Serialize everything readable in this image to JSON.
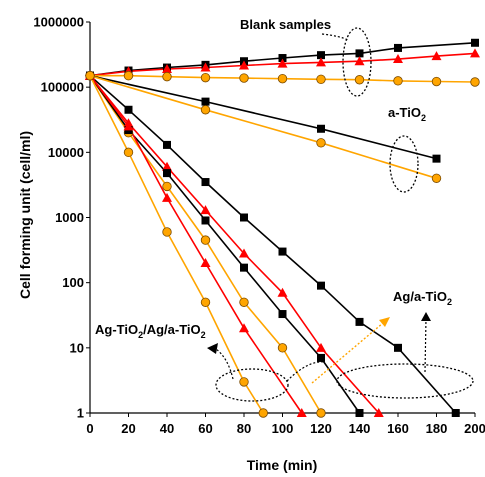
{
  "chart_data": {
    "type": "scatter",
    "title": "",
    "xlabel": "Time (min)",
    "ylabel": "Cell forming unit (cell/ml)",
    "xlim": [
      0,
      200
    ],
    "ylim": [
      1,
      1000000
    ],
    "yscale": "log",
    "grid": false,
    "legend": "none",
    "x_ticks": [
      "0",
      "20",
      "40",
      "60",
      "80",
      "100",
      "120",
      "140",
      "160",
      "180",
      "200"
    ],
    "y_ticks": [
      "1",
      "10",
      "100",
      "1000",
      "10000",
      "100000",
      "1000000"
    ],
    "annotations": [
      {
        "id": "blank",
        "text": "Blank samples"
      },
      {
        "id": "atio2",
        "text": "a-TiO",
        "sub": "2"
      },
      {
        "id": "agatio2",
        "text": "Ag/a-TiO",
        "sub": "2"
      },
      {
        "id": "agtio2",
        "text": "Ag-TiO",
        "sub": "2",
        "text2": "/Ag/a-TiO",
        "sub2": "2"
      }
    ],
    "series": [
      {
        "marker": "square",
        "color": "#000000",
        "x": [
          0,
          20,
          40,
          60,
          80,
          100,
          120,
          140,
          160,
          200
        ],
        "y": [
          150000,
          180000,
          200000,
          220000,
          250000,
          280000,
          310000,
          330000,
          400000,
          480000
        ]
      },
      {
        "marker": "triangle",
        "color": "#ff0000",
        "x": [
          0,
          20,
          40,
          60,
          80,
          100,
          120,
          140,
          160,
          180,
          200
        ],
        "y": [
          150000,
          175000,
          190000,
          200000,
          215000,
          230000,
          240000,
          250000,
          270000,
          300000,
          330000
        ]
      },
      {
        "marker": "circle",
        "color": "#ffa500",
        "x": [
          0,
          20,
          40,
          60,
          80,
          100,
          120,
          140,
          160,
          180,
          200
        ],
        "y": [
          150000,
          150000,
          145000,
          140000,
          138000,
          135000,
          132000,
          130000,
          125000,
          122000,
          120000
        ]
      },
      {
        "marker": "square",
        "color": "#000000",
        "x": [
          0,
          60,
          120,
          180
        ],
        "y": [
          150000,
          60000,
          23000,
          8000
        ]
      },
      {
        "marker": "circle",
        "color": "#ffa500",
        "x": [
          0,
          60,
          120,
          180
        ],
        "y": [
          150000,
          45000,
          14000,
          4000
        ]
      },
      {
        "marker": "square",
        "color": "#000000",
        "x": [
          0,
          20,
          40,
          60,
          80,
          100,
          120,
          140,
          160,
          190
        ],
        "y": [
          150000,
          45000,
          13000,
          3500,
          1000,
          300,
          90,
          25,
          10,
          1
        ]
      },
      {
        "marker": "triangle",
        "color": "#ff0000",
        "x": [
          0,
          20,
          40,
          60,
          80,
          100,
          120,
          150
        ],
        "y": [
          150000,
          28000,
          6000,
          1300,
          280,
          70,
          10,
          1
        ]
      },
      {
        "marker": "circle",
        "color": "#ffa500",
        "x": [
          0,
          20,
          40,
          60,
          80,
          100,
          120
        ],
        "y": [
          150000,
          20000,
          3000,
          450,
          50,
          10,
          1
        ]
      },
      {
        "marker": "square",
        "color": "#000000",
        "x": [
          0,
          20,
          40,
          60,
          80,
          100,
          120,
          140
        ],
        "y": [
          150000,
          22000,
          4800,
          900,
          170,
          33,
          7,
          1
        ]
      },
      {
        "marker": "triangle",
        "color": "#ff0000",
        "x": [
          0,
          20,
          40,
          60,
          80,
          110
        ],
        "y": [
          150000,
          25000,
          2000,
          200,
          20,
          1
        ]
      },
      {
        "marker": "circle",
        "color": "#ffa500",
        "x": [
          0,
          20,
          40,
          60,
          80,
          90
        ],
        "y": [
          150000,
          10000,
          600,
          50,
          3,
          1
        ]
      }
    ]
  }
}
